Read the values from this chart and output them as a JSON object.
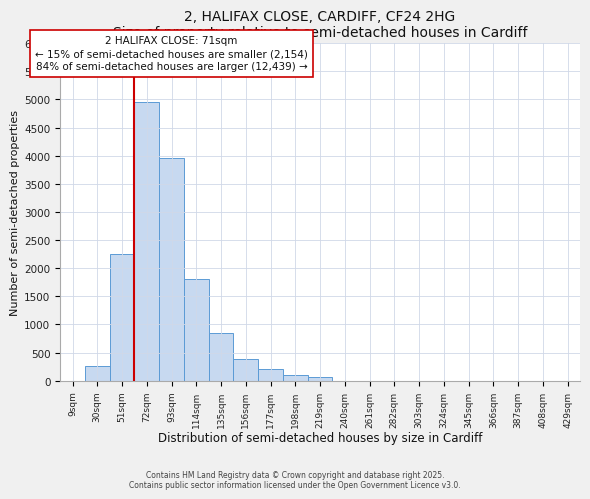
{
  "title": "2, HALIFAX CLOSE, CARDIFF, CF24 2HG",
  "subtitle": "Size of property relative to semi-detached houses in Cardiff",
  "xlabel": "Distribution of semi-detached houses by size in Cardiff",
  "ylabel": "Number of semi-detached properties",
  "bar_labels": [
    "9sqm",
    "30sqm",
    "51sqm",
    "72sqm",
    "93sqm",
    "114sqm",
    "135sqm",
    "156sqm",
    "177sqm",
    "198sqm",
    "219sqm",
    "240sqm",
    "261sqm",
    "282sqm",
    "303sqm",
    "324sqm",
    "345sqm",
    "366sqm",
    "387sqm",
    "408sqm",
    "429sqm"
  ],
  "bar_values": [
    0,
    260,
    2250,
    4950,
    3950,
    1800,
    850,
    380,
    210,
    100,
    70,
    0,
    0,
    0,
    0,
    0,
    0,
    0,
    0,
    0,
    0
  ],
  "bar_color": "#c7d9f0",
  "bar_edge_color": "#5b9bd5",
  "vline_color": "#cc0000",
  "annotation_line1": "2 HALIFAX CLOSE: 71sqm",
  "annotation_line2": "← 15% of semi-detached houses are smaller (2,154)",
  "annotation_line3": "84% of semi-detached houses are larger (12,439) →",
  "annotation_box_color": "#ffffff",
  "annotation_box_edge": "#cc0000",
  "ylim": [
    0,
    6000
  ],
  "yticks": [
    0,
    500,
    1000,
    1500,
    2000,
    2500,
    3000,
    3500,
    4000,
    4500,
    5000,
    5500,
    6000
  ],
  "footer1": "Contains HM Land Registry data © Crown copyright and database right 2025.",
  "footer2": "Contains public sector information licensed under the Open Government Licence v3.0.",
  "bg_color": "#f0f0f0",
  "plot_bg_color": "#ffffff",
  "grid_color": "#d0d8e8"
}
